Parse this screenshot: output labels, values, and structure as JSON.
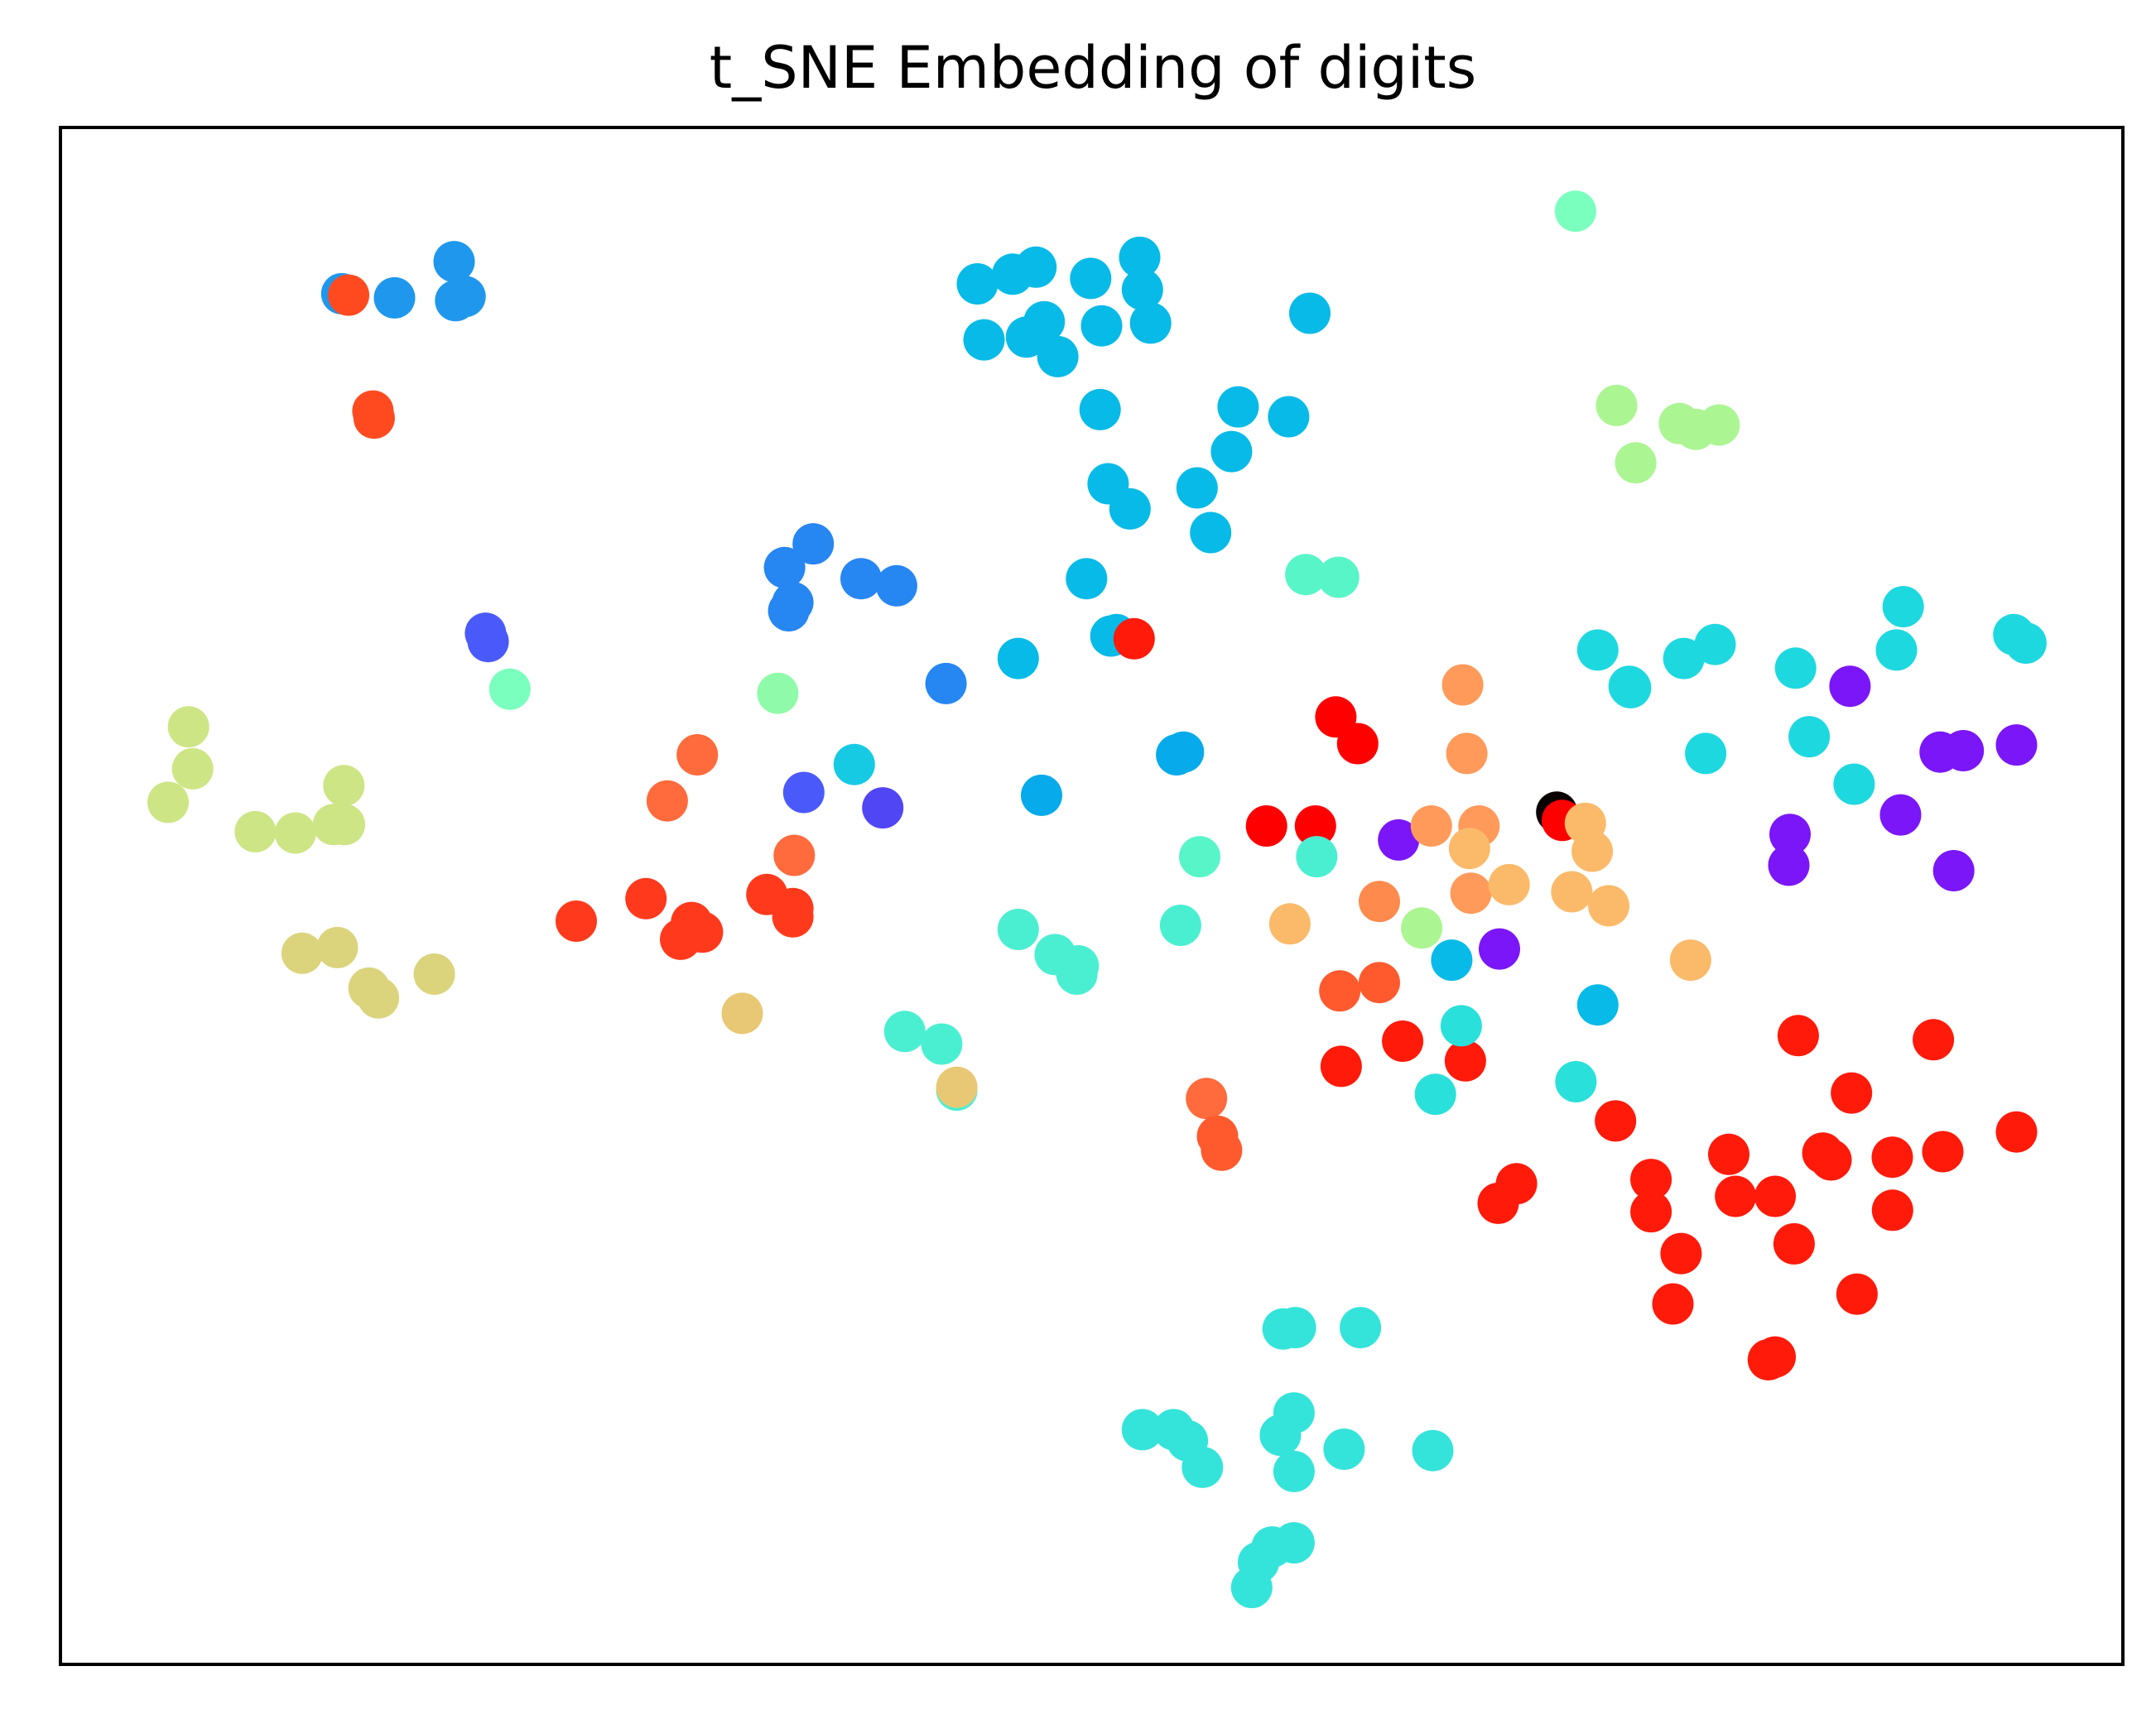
{
  "chart_data": {
    "type": "scatter",
    "title": "t_SNE Embedding of digits",
    "xlabel": "",
    "ylabel": "",
    "xticks": [],
    "yticks": [],
    "xlim": [
      0,
      1
    ],
    "ylim": [
      0,
      1
    ],
    "grid": false,
    "legend": "none",
    "points": [
      {
        "x": 0.1364,
        "y": 0.8918,
        "color": "#1f97ec"
      },
      {
        "x": 0.1397,
        "y": 0.8909,
        "color": "#ff4a20"
      },
      {
        "x": 0.162,
        "y": 0.8891,
        "color": "#1f97ec"
      },
      {
        "x": 0.1909,
        "y": 0.9127,
        "color": "#1f97ec"
      },
      {
        "x": 0.1916,
        "y": 0.8873,
        "color": "#1f97ec"
      },
      {
        "x": 0.1962,
        "y": 0.89,
        "color": "#1f97ec"
      },
      {
        "x": 0.1515,
        "y": 0.8155,
        "color": "#ff4a20"
      },
      {
        "x": 0.1521,
        "y": 0.8109,
        "color": "#ff4a20"
      },
      {
        "x": 0.4446,
        "y": 0.8982,
        "color": "#07bae8"
      },
      {
        "x": 0.4617,
        "y": 0.9045,
        "color": "#07bae8"
      },
      {
        "x": 0.473,
        "y": 0.9091,
        "color": "#07bae8"
      },
      {
        "x": 0.4995,
        "y": 0.9018,
        "color": "#07bae8"
      },
      {
        "x": 0.5233,
        "y": 0.9155,
        "color": "#07bae8"
      },
      {
        "x": 0.5246,
        "y": 0.8945,
        "color": "#07bae8"
      },
      {
        "x": 0.4478,
        "y": 0.8618,
        "color": "#07bae8"
      },
      {
        "x": 0.4684,
        "y": 0.8636,
        "color": "#07bae8"
      },
      {
        "x": 0.477,
        "y": 0.8736,
        "color": "#07bae8"
      },
      {
        "x": 0.4836,
        "y": 0.8509,
        "color": "#07bae8"
      },
      {
        "x": 0.5048,
        "y": 0.8709,
        "color": "#07bae8"
      },
      {
        "x": 0.5286,
        "y": 0.8727,
        "color": "#07bae8"
      },
      {
        "x": 0.6058,
        "y": 0.8791,
        "color": "#07bae8"
      },
      {
        "x": 0.5041,
        "y": 0.8164,
        "color": "#07bae8"
      },
      {
        "x": 0.571,
        "y": 0.8182,
        "color": "#07bae8"
      },
      {
        "x": 0.5955,
        "y": 0.8118,
        "color": "#07bae8"
      },
      {
        "x": 0.5678,
        "y": 0.7891,
        "color": "#07bae8"
      },
      {
        "x": 0.508,
        "y": 0.7682,
        "color": "#07bae8"
      },
      {
        "x": 0.5186,
        "y": 0.7518,
        "color": "#07bae8"
      },
      {
        "x": 0.5511,
        "y": 0.7655,
        "color": "#07bae8"
      },
      {
        "x": 0.5577,
        "y": 0.7364,
        "color": "#07bae8"
      },
      {
        "x": 0.4975,
        "y": 0.7064,
        "color": "#07bae8"
      },
      {
        "x": 0.5093,
        "y": 0.6691,
        "color": "#07bae8"
      },
      {
        "x": 0.4644,
        "y": 0.6545,
        "color": "#07bae8"
      },
      {
        "x": 0.7346,
        "y": 0.9455,
        "color": "#7affbe"
      },
      {
        "x": 0.7545,
        "y": 0.8191,
        "color": "#abf593"
      },
      {
        "x": 0.785,
        "y": 0.8073,
        "color": "#abf593"
      },
      {
        "x": 0.7929,
        "y": 0.8036,
        "color": "#abf593"
      },
      {
        "x": 0.8042,
        "y": 0.8064,
        "color": "#abf593"
      },
      {
        "x": 0.7638,
        "y": 0.7818,
        "color": "#abf593"
      },
      {
        "x": 0.6038,
        "y": 0.7091,
        "color": "#58f5c8"
      },
      {
        "x": 0.6197,
        "y": 0.7073,
        "color": "#58f5c8"
      },
      {
        "x": 0.365,
        "y": 0.7291,
        "color": "#2686f2"
      },
      {
        "x": 0.3511,
        "y": 0.7136,
        "color": "#2686f2"
      },
      {
        "x": 0.3882,
        "y": 0.7064,
        "color": "#2686f2"
      },
      {
        "x": 0.4054,
        "y": 0.7018,
        "color": "#2686f2"
      },
      {
        "x": 0.3551,
        "y": 0.6909,
        "color": "#2686f2"
      },
      {
        "x": 0.3531,
        "y": 0.6855,
        "color": "#2686f2"
      },
      {
        "x": 0.2061,
        "y": 0.6709,
        "color": "#4a5afa"
      },
      {
        "x": 0.2074,
        "y": 0.6655,
        "color": "#4a5afa"
      },
      {
        "x": 0.2179,
        "y": 0.6345,
        "color": "#7affbe"
      },
      {
        "x": 0.3478,
        "y": 0.6318,
        "color": "#8ffbaa"
      },
      {
        "x": 0.4294,
        "y": 0.6382,
        "color": "#2686f2"
      },
      {
        "x": 0.512,
        "y": 0.67,
        "color": "#07bae8"
      },
      {
        "x": 0.5206,
        "y": 0.6673,
        "color": "#ff1a0a"
      },
      {
        "x": 0.0621,
        "y": 0.61,
        "color": "#cde584"
      },
      {
        "x": 0.0641,
        "y": 0.5827,
        "color": "#cde584"
      },
      {
        "x": 0.0522,
        "y": 0.5609,
        "color": "#cde584"
      },
      {
        "x": 0.1374,
        "y": 0.5718,
        "color": "#cde584"
      },
      {
        "x": 0.0945,
        "y": 0.5418,
        "color": "#cde584"
      },
      {
        "x": 0.1139,
        "y": 0.5409,
        "color": "#cde584"
      },
      {
        "x": 0.1324,
        "y": 0.5464,
        "color": "#cde584"
      },
      {
        "x": 0.1377,
        "y": 0.5464,
        "color": "#cde584"
      },
      {
        "x": 0.1172,
        "y": 0.4627,
        "color": "#dbd47c"
      },
      {
        "x": 0.1343,
        "y": 0.4664,
        "color": "#dbd47c"
      },
      {
        "x": 0.1496,
        "y": 0.44,
        "color": "#dbd47c"
      },
      {
        "x": 0.1542,
        "y": 0.4336,
        "color": "#dbd47c"
      },
      {
        "x": 0.1813,
        "y": 0.4491,
        "color": "#dbd47c"
      },
      {
        "x": 0.3088,
        "y": 0.5918,
        "color": "#ff6b3c"
      },
      {
        "x": 0.2942,
        "y": 0.5618,
        "color": "#ff6b3c"
      },
      {
        "x": 0.3558,
        "y": 0.5264,
        "color": "#ff6b3c"
      },
      {
        "x": 0.2501,
        "y": 0.4836,
        "color": "#ff3a1c"
      },
      {
        "x": 0.2839,
        "y": 0.4982,
        "color": "#ff3a1c"
      },
      {
        "x": 0.306,
        "y": 0.4827,
        "color": "#ff3a1c"
      },
      {
        "x": 0.3007,
        "y": 0.4718,
        "color": "#ff3a1c"
      },
      {
        "x": 0.3113,
        "y": 0.4764,
        "color": "#ff3a1c"
      },
      {
        "x": 0.3425,
        "y": 0.5009,
        "color": "#ff3a1c"
      },
      {
        "x": 0.3551,
        "y": 0.4918,
        "color": "#ff3a1c"
      },
      {
        "x": 0.3551,
        "y": 0.4864,
        "color": "#ff3a1c"
      },
      {
        "x": 0.3306,
        "y": 0.4236,
        "color": "#e8c874"
      },
      {
        "x": 0.3604,
        "y": 0.5673,
        "color": "#4a5afa"
      },
      {
        "x": 0.3987,
        "y": 0.5573,
        "color": "#5046f4"
      },
      {
        "x": 0.3849,
        "y": 0.5855,
        "color": "#16cae4"
      },
      {
        "x": 0.4757,
        "y": 0.5655,
        "color": "#07aaea"
      },
      {
        "x": 0.5412,
        "y": 0.5918,
        "color": "#07aaea"
      },
      {
        "x": 0.5445,
        "y": 0.5936,
        "color": "#07aaea"
      },
      {
        "x": 0.5524,
        "y": 0.5255,
        "color": "#58f5c8"
      },
      {
        "x": 0.5431,
        "y": 0.4809,
        "color": "#4aefd2"
      },
      {
        "x": 0.4644,
        "y": 0.4782,
        "color": "#4aefd2"
      },
      {
        "x": 0.4823,
        "y": 0.4618,
        "color": "#4aefd2"
      },
      {
        "x": 0.4928,
        "y": 0.4491,
        "color": "#4aefd2"
      },
      {
        "x": 0.4935,
        "y": 0.4545,
        "color": "#4aefd2"
      },
      {
        "x": 0.4094,
        "y": 0.4118,
        "color": "#4aefd2"
      },
      {
        "x": 0.4273,
        "y": 0.4036,
        "color": "#4aefd2"
      },
      {
        "x": 0.4346,
        "y": 0.3736,
        "color": "#4aefd2"
      },
      {
        "x": 0.4346,
        "y": 0.3755,
        "color": "#e8c874"
      },
      {
        "x": 0.5557,
        "y": 0.3682,
        "color": "#ff6b3c"
      },
      {
        "x": 0.561,
        "y": 0.3436,
        "color": "#ff5a2e"
      },
      {
        "x": 0.563,
        "y": 0.3345,
        "color": "#ff5a2e"
      },
      {
        "x": 0.6184,
        "y": 0.6164,
        "color": "#ff0000"
      },
      {
        "x": 0.629,
        "y": 0.5991,
        "color": "#ff0000"
      },
      {
        "x": 0.5848,
        "y": 0.5455,
        "color": "#ff0000"
      },
      {
        "x": 0.6085,
        "y": 0.5455,
        "color": "#ff0000"
      },
      {
        "x": 0.6091,
        "y": 0.5255,
        "color": "#4aefd2"
      },
      {
        "x": 0.6488,
        "y": 0.5364,
        "color": "#7a16f8"
      },
      {
        "x": 0.6799,
        "y": 0.6373,
        "color": "#ff9a5a"
      },
      {
        "x": 0.6819,
        "y": 0.5927,
        "color": "#ff9a5a"
      },
      {
        "x": 0.6647,
        "y": 0.5455,
        "color": "#ff9a5a"
      },
      {
        "x": 0.6878,
        "y": 0.5455,
        "color": "#ff9a5a"
      },
      {
        "x": 0.6832,
        "y": 0.5309,
        "color": "#fbba6a"
      },
      {
        "x": 0.6839,
        "y": 0.5018,
        "color": "#ff9a5a"
      },
      {
        "x": 0.7024,
        "y": 0.5073,
        "color": "#fbba6a"
      },
      {
        "x": 0.6395,
        "y": 0.4964,
        "color": "#ff8a4e"
      },
      {
        "x": 0.5961,
        "y": 0.4818,
        "color": "#fbba6a"
      },
      {
        "x": 0.66,
        "y": 0.4791,
        "color": "#abf593"
      },
      {
        "x": 0.6746,
        "y": 0.4582,
        "color": "#07bae8"
      },
      {
        "x": 0.6977,
        "y": 0.4655,
        "color": "#7a16f8"
      },
      {
        "x": 0.6203,
        "y": 0.4382,
        "color": "#ff5a2e"
      },
      {
        "x": 0.6395,
        "y": 0.4436,
        "color": "#ff5a2e"
      },
      {
        "x": 0.6508,
        "y": 0.4055,
        "color": "#ff1a0a"
      },
      {
        "x": 0.621,
        "y": 0.3891,
        "color": "#ff1a0a"
      },
      {
        "x": 0.6812,
        "y": 0.3927,
        "color": "#ff1a0a"
      },
      {
        "x": 0.6792,
        "y": 0.4155,
        "color": "#2ae0da"
      },
      {
        "x": 0.6667,
        "y": 0.3709,
        "color": "#2ae0da"
      },
      {
        "x": 0.7255,
        "y": 0.5545,
        "color": "#0a0000"
      },
      {
        "x": 0.7282,
        "y": 0.5491,
        "color": "#ff0000"
      },
      {
        "x": 0.7427,
        "y": 0.5291,
        "color": "#fbba6a"
      },
      {
        "x": 0.7394,
        "y": 0.5473,
        "color": "#fbba6a"
      },
      {
        "x": 0.7328,
        "y": 0.5027,
        "color": "#fbba6a"
      },
      {
        "x": 0.7507,
        "y": 0.4936,
        "color": "#fbba6a"
      },
      {
        "x": 0.7904,
        "y": 0.4582,
        "color": "#fbba6a"
      },
      {
        "x": 0.7454,
        "y": 0.4291,
        "color": "#07bae8"
      },
      {
        "x": 0.7348,
        "y": 0.3791,
        "color": "#2ae0da"
      },
      {
        "x": 0.7454,
        "y": 0.66,
        "color": "#1ed8e0"
      },
      {
        "x": 0.7606,
        "y": 0.6364,
        "color": "#1ed8e0"
      },
      {
        "x": 0.7613,
        "y": 0.6355,
        "color": "#1ed8e0"
      },
      {
        "x": 0.7871,
        "y": 0.6545,
        "color": "#1ed8e0"
      },
      {
        "x": 0.8023,
        "y": 0.6636,
        "color": "#1ed8e0"
      },
      {
        "x": 0.7977,
        "y": 0.5927,
        "color": "#1ed8e0"
      },
      {
        "x": 0.8413,
        "y": 0.6482,
        "color": "#1ed8e0"
      },
      {
        "x": 0.8479,
        "y": 0.6036,
        "color": "#1ed8e0"
      },
      {
        "x": 0.8697,
        "y": 0.5727,
        "color": "#1ed8e0"
      },
      {
        "x": 0.8935,
        "y": 0.6882,
        "color": "#1ed8e0"
      },
      {
        "x": 0.8902,
        "y": 0.66,
        "color": "#1ed8e0"
      },
      {
        "x": 0.9471,
        "y": 0.67,
        "color": "#1ed8e0"
      },
      {
        "x": 0.953,
        "y": 0.6645,
        "color": "#1ed8e0"
      },
      {
        "x": 0.8677,
        "y": 0.6364,
        "color": "#7a16f8"
      },
      {
        "x": 0.9114,
        "y": 0.5936,
        "color": "#7a16f8"
      },
      {
        "x": 0.9226,
        "y": 0.5945,
        "color": "#7a16f8"
      },
      {
        "x": 0.9484,
        "y": 0.5982,
        "color": "#7a16f8"
      },
      {
        "x": 0.8922,
        "y": 0.5527,
        "color": "#7a16f8"
      },
      {
        "x": 0.8386,
        "y": 0.54,
        "color": "#7a16f8"
      },
      {
        "x": 0.838,
        "y": 0.52,
        "color": "#7a16f8"
      },
      {
        "x": 0.918,
        "y": 0.5164,
        "color": "#7a16f8"
      },
      {
        "x": 0.8426,
        "y": 0.4091,
        "color": "#ff1a0a"
      },
      {
        "x": 0.9081,
        "y": 0.4064,
        "color": "#ff1a0a"
      },
      {
        "x": 0.8684,
        "y": 0.3718,
        "color": "#ff1a0a"
      },
      {
        "x": 0.754,
        "y": 0.3536,
        "color": "#ff1a0a"
      },
      {
        "x": 0.8089,
        "y": 0.3318,
        "color": "#ff1a0a"
      },
      {
        "x": 0.8545,
        "y": 0.3327,
        "color": "#ff1a0a"
      },
      {
        "x": 0.8585,
        "y": 0.3282,
        "color": "#ff1a0a"
      },
      {
        "x": 0.8882,
        "y": 0.33,
        "color": "#ff1a0a"
      },
      {
        "x": 0.9127,
        "y": 0.3336,
        "color": "#ff1a0a"
      },
      {
        "x": 0.9484,
        "y": 0.3464,
        "color": "#ff1a0a"
      },
      {
        "x": 0.7712,
        "y": 0.3155,
        "color": "#ff1a0a"
      },
      {
        "x": 0.8122,
        "y": 0.3045,
        "color": "#ff1a0a"
      },
      {
        "x": 0.8314,
        "y": 0.3045,
        "color": "#ff1a0a"
      },
      {
        "x": 0.7712,
        "y": 0.2945,
        "color": "#ff1a0a"
      },
      {
        "x": 0.8883,
        "y": 0.2955,
        "color": "#ff1a0a"
      },
      {
        "x": 0.706,
        "y": 0.3127,
        "color": "#ff1a0a"
      },
      {
        "x": 0.6971,
        "y": 0.3,
        "color": "#ff1a0a"
      },
      {
        "x": 0.7858,
        "y": 0.2673,
        "color": "#ff1a0a"
      },
      {
        "x": 0.8406,
        "y": 0.2736,
        "color": "#ff1a0a"
      },
      {
        "x": 0.7818,
        "y": 0.2345,
        "color": "#ff1a0a"
      },
      {
        "x": 0.8711,
        "y": 0.2409,
        "color": "#ff1a0a"
      },
      {
        "x": 0.8281,
        "y": 0.1982,
        "color": "#ff1a0a"
      },
      {
        "x": 0.8314,
        "y": 0.2,
        "color": "#ff1a0a"
      },
      {
        "x": 0.5928,
        "y": 0.2182,
        "color": "#34e4da"
      },
      {
        "x": 0.5988,
        "y": 0.2191,
        "color": "#34e4da"
      },
      {
        "x": 0.6303,
        "y": 0.2191,
        "color": "#34e4da"
      },
      {
        "x": 0.5246,
        "y": 0.1527,
        "color": "#34e4da"
      },
      {
        "x": 0.5398,
        "y": 0.1527,
        "color": "#34e4da"
      },
      {
        "x": 0.5464,
        "y": 0.1455,
        "color": "#34e4da"
      },
      {
        "x": 0.5537,
        "y": 0.1282,
        "color": "#34e4da"
      },
      {
        "x": 0.5981,
        "y": 0.1636,
        "color": "#34e4da"
      },
      {
        "x": 0.5915,
        "y": 0.1491,
        "color": "#34e4da"
      },
      {
        "x": 0.5981,
        "y": 0.1255,
        "color": "#34e4da"
      },
      {
        "x": 0.6224,
        "y": 0.14,
        "color": "#34e4da"
      },
      {
        "x": 0.6654,
        "y": 0.1391,
        "color": "#34e4da"
      },
      {
        "x": 0.5875,
        "y": 0.0764,
        "color": "#34e4da"
      },
      {
        "x": 0.5981,
        "y": 0.0791,
        "color": "#34e4da"
      },
      {
        "x": 0.5809,
        "y": 0.0664,
        "color": "#34e4da"
      },
      {
        "x": 0.5776,
        "y": 0.05,
        "color": "#34e4da"
      }
    ]
  }
}
